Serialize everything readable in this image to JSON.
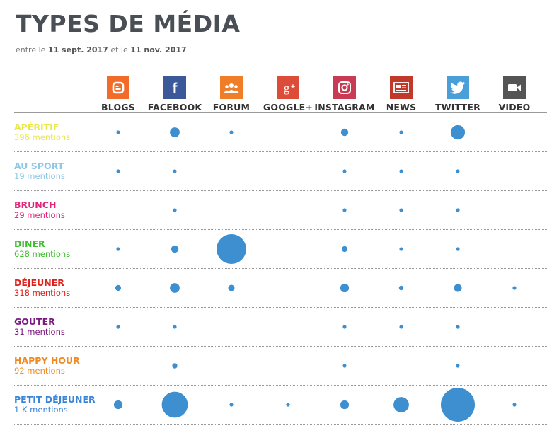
{
  "header": {
    "title": "TYPES DE MÉDIA",
    "subtitle_prefix": "entre le",
    "date_start": "11 sept. 2017",
    "subtitle_mid": "et le",
    "date_end": "11 nov. 2017"
  },
  "columns": [
    {
      "label": "BLOGS",
      "icon": "blogger-icon",
      "color": "#f26b28"
    },
    {
      "label": "FACEBOOK",
      "icon": "facebook-icon",
      "color": "#3b5998"
    },
    {
      "label": "FORUM",
      "icon": "forum-icon",
      "color": "#f07d28"
    },
    {
      "label": "GOOGLE+",
      "icon": "google-plus-icon",
      "color": "#dd4b39"
    },
    {
      "label": "INSTAGRAM",
      "icon": "instagram-icon",
      "color": "#c93a54"
    },
    {
      "label": "NEWS",
      "icon": "news-icon",
      "color": "#c0392b"
    },
    {
      "label": "TWITTER",
      "icon": "twitter-icon",
      "color": "#4a9fd8"
    },
    {
      "label": "VIDEO",
      "icon": "video-icon",
      "color": "#555555"
    }
  ],
  "rows": [
    {
      "name": "APÉRITIF",
      "count": "396 mentions",
      "color": "#e8e84a"
    },
    {
      "name": "AU SPORT",
      "count": "19 mentions",
      "color": "#8ec8e4"
    },
    {
      "name": "BRUNCH",
      "count": "29 mentions",
      "color": "#e0257a"
    },
    {
      "name": "DINER",
      "count": "628 mentions",
      "color": "#3fbf30"
    },
    {
      "name": "DÉJEUNER",
      "count": "318 mentions",
      "color": "#e0201a"
    },
    {
      "name": "GOUTER",
      "count": "31 mentions",
      "color": "#7a1a80"
    },
    {
      "name": "HAPPY HOUR",
      "count": "92 mentions",
      "color": "#f08a20"
    },
    {
      "name": "PETIT DÉJEUNER",
      "count": "1 K mentions",
      "color": "#3a85d8"
    }
  ],
  "chart_data": {
    "type": "bubble-matrix",
    "bubble_color": "#3d8fd0",
    "x_categories": [
      "BLOGS",
      "FACEBOOK",
      "FORUM",
      "GOOGLE+",
      "INSTAGRAM",
      "NEWS",
      "TWITTER",
      "VIDEO"
    ],
    "y_categories": [
      "APÉRITIF",
      "AU SPORT",
      "BRUNCH",
      "DINER",
      "DÉJEUNER",
      "GOUTER",
      "HAPPY HOUR",
      "PETIT DÉJEUNER"
    ],
    "values": [
      [
        4,
        28,
        4,
        0,
        16,
        4,
        60,
        0
      ],
      [
        1,
        1,
        0,
        0,
        1,
        1,
        1,
        0
      ],
      [
        0,
        1,
        0,
        0,
        2,
        2,
        2,
        0
      ],
      [
        4,
        16,
        260,
        0,
        10,
        4,
        4,
        0
      ],
      [
        10,
        28,
        12,
        0,
        22,
        6,
        18,
        2
      ],
      [
        1,
        1,
        0,
        0,
        1,
        1,
        1,
        0
      ],
      [
        0,
        8,
        0,
        0,
        2,
        0,
        3,
        0
      ],
      [
        22,
        200,
        3,
        1,
        22,
        70,
        340,
        2
      ]
    ]
  }
}
